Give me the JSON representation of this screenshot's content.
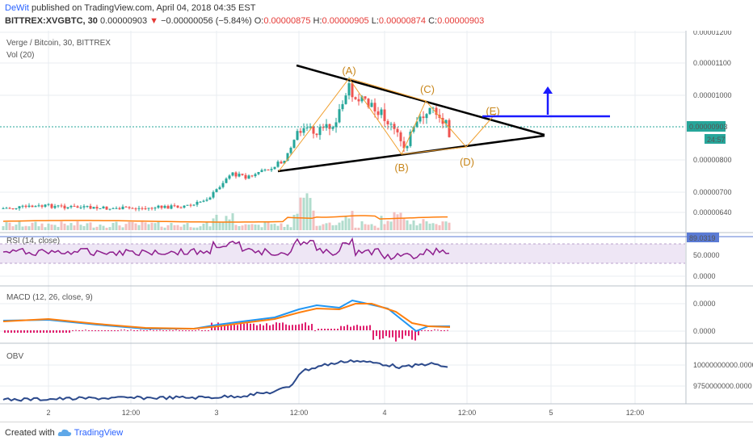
{
  "header": {
    "author": "DeWit",
    "published_text": "published on TradingView.com, April 04, 2018 04:35 EST",
    "symbol": "BITTREX:XVGBTC, 30",
    "last": "0.00000903",
    "change": "−0.00000056 (−5.84%)",
    "open_label": "O:",
    "open": "0.00000875",
    "high_label": "H:",
    "high": "0.00000905",
    "low_label": "L:",
    "low": "0.00000874",
    "close_label": "C:",
    "close": "0.00000903"
  },
  "colors": {
    "up": "#26a69a",
    "down": "#ef5350",
    "pattern": "#f0a030",
    "trend": "#000000",
    "target": "#1a1aff",
    "rsi": "#8e1e8e",
    "macd": "#2196f3",
    "signal": "#ff7f0e",
    "obv": "#2c4a8c",
    "vol_ma": "#ff7f0e",
    "grid": "#e8ecf0"
  },
  "chart_data": [
    {
      "type": "candlestick",
      "title": "Verge / Bitcoin, 30, BITTREX",
      "volume_label": "Vol (20)",
      "y_ticks": [
        "0.00001200",
        "0.00001100",
        "0.00001000",
        "0.00000800",
        "0.00000700",
        "0.00000640"
      ],
      "current_price": "0.00000903",
      "countdown": "24:57",
      "ohlc_approx": [
        [
          6.6e-06,
          6.68e-06,
          6.55e-06,
          6.62e-06
        ],
        [
          6.62e-06,
          6.8e-06,
          6.58e-06,
          6.76e-06
        ],
        [
          7e-06,
          7.4e-06,
          6.9e-06,
          7.35e-06
        ],
        [
          7.8e-06,
          8.2e-06,
          7.7e-06,
          8.12e-06
        ],
        [
          9e-06,
          9.2e-06,
          8.8e-06,
          9.05e-06
        ],
        [
          9.8e-06,
          1.05e-05,
          9.6e-06,
          1.04e-05
        ],
        [
          1.02e-05,
          1.03e-05,
          9.8e-06,
          9.9e-06
        ],
        [
          9.2e-06,
          9.4e-06,
          8.2e-06,
          8.4e-06
        ],
        [
          8.7e-06,
          9.9e-06,
          8.6e-06,
          9.75e-06
        ],
        [
          9.4e-06,
          9.5e-06,
          8.9e-06,
          9.03e-06
        ]
      ],
      "pattern_labels": [
        "(A)",
        "(B)",
        "(C)",
        "(D)",
        "(E)"
      ]
    },
    {
      "type": "line",
      "title": "RSI (14, close)",
      "y_ticks": [
        "50.0000",
        "0.0000"
      ],
      "last_value": "89.0319"
    },
    {
      "type": "line",
      "title": "MACD (12, 26, close, 9)",
      "y_ticks": [
        "0.0000",
        "0.0000"
      ],
      "series": [
        {
          "name": "MACD"
        },
        {
          "name": "Signal"
        },
        {
          "name": "Histogram"
        }
      ]
    },
    {
      "type": "line",
      "title": "OBV",
      "y_ticks": [
        "10000000000.0000",
        "9750000000.0000"
      ]
    }
  ],
  "x_ticks": [
    "2",
    "12:00",
    "3",
    "12:00",
    "4",
    "12:00",
    "5",
    "12:00"
  ],
  "footer": {
    "created_text": "Created with",
    "brand": "TradingView"
  }
}
